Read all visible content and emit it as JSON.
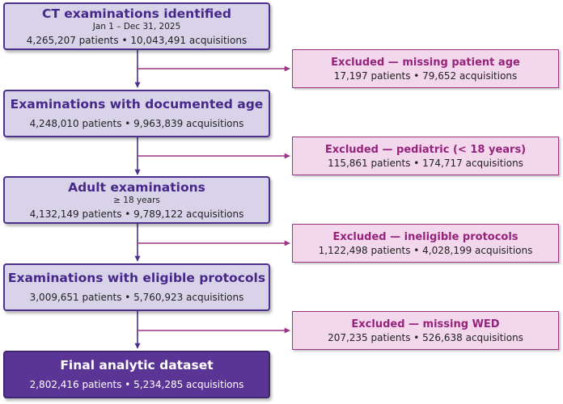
{
  "main_boxes": [
    {
      "title": "CT examinations identified",
      "subtitle": "Jan 1 – Dec 31, 2025",
      "stats": "4,265,207 patients  •  10,043,491 acquisitions"
    },
    {
      "title": "Examinations with documented age",
      "stats": "4,248,010 patients  •  9,963,839 acquisitions"
    },
    {
      "title": "Adult examinations",
      "subtitle": "≥ 18 years",
      "stats": "4,132,149 patients  •  9,789,122 acquisitions"
    },
    {
      "title": "Examinations with eligible protocols",
      "stats": "3,009,651 patients  •  5,760,923 acquisitions"
    }
  ],
  "final_box": {
    "title": "Final analytic dataset",
    "stats": "2,802,416 patients  •  5,234,285 acquisitions"
  },
  "exclusions": [
    {
      "title": "Excluded — missing patient age",
      "stats": "17,197 patients  •  79,652 acquisitions"
    },
    {
      "title": "Excluded — pediatric (< 18 years)",
      "stats": "115,861 patients  •  174,717 acquisitions"
    },
    {
      "title": "Excluded — ineligible protocols",
      "stats": "1,122,498 patients  •  4,028,199 acquisitions"
    },
    {
      "title": "Excluded — missing WED",
      "stats": "207,235 patients  •  526,638 acquisitions"
    }
  ],
  "colors": {
    "main_fill": "#d9d3ea",
    "main_border": "#4d2f8c",
    "main_title": "#45288a",
    "final_fill": "#5a3596",
    "exclusion_fill": "#f3d7ec",
    "exclusion_border": "#9c3583",
    "exclusion_title": "#96237b"
  }
}
